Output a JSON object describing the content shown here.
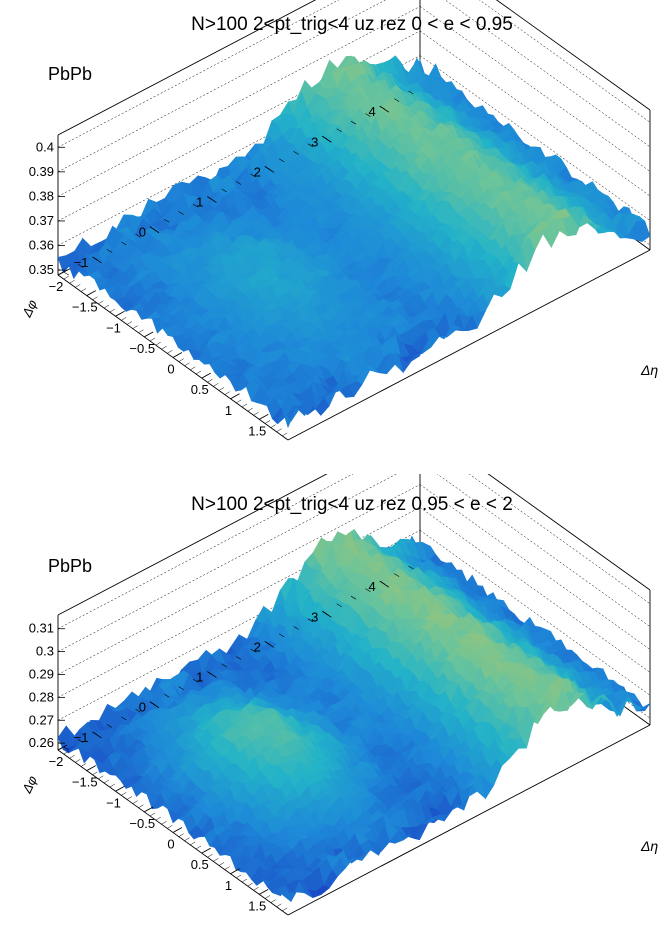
{
  "chart_data": [
    {
      "type": "surface3d",
      "title": "N>100 2<pt_trig<4 uz rez 0 < e < 0.95",
      "label": "PbPb",
      "x_axis_label": "Δη",
      "y_axis_label": "Δφ",
      "x_ticks": [
        "−2",
        "−1.5",
        "−1",
        "−0.5",
        "0",
        "0.5",
        "1",
        "1.5"
      ],
      "y_ticks": [
        "−1",
        "0",
        "1",
        "2",
        "3",
        "4"
      ],
      "z_ticks": [
        "0.35",
        "0.36",
        "0.37",
        "0.38",
        "0.39",
        "0.4"
      ],
      "x_range": [
        -2,
        2
      ],
      "y_range": [
        -1.6,
        4.7
      ],
      "z_range": [
        0.348,
        0.405
      ],
      "surface_model": {
        "baseline": 0.355,
        "near_side_peak": {
          "dphi_center": 0,
          "amplitude": 0.008
        },
        "away_side_ridge": {
          "dphi_center": 3.14,
          "amplitude": 0.02
        }
      },
      "color_scale": [
        "#1a3bc2",
        "#1e8ad8",
        "#23b3c8",
        "#6cc49a",
        "#c4c45a",
        "#f0c040",
        "#f6e03a"
      ]
    },
    {
      "type": "surface3d",
      "title": "N>100 2<pt_trig<4 uz rez 0.95 < e < 2",
      "label": "PbPb",
      "x_axis_label": "Δη",
      "y_axis_label": "Δφ",
      "x_ticks": [
        "−2",
        "−1.5",
        "−1",
        "−0.5",
        "0",
        "0.5",
        "1",
        "1.5"
      ],
      "y_ticks": [
        "−1",
        "0",
        "1",
        "2",
        "3",
        "4"
      ],
      "z_ticks": [
        "0.26",
        "0.27",
        "0.28",
        "0.29",
        "0.3",
        "0.31"
      ],
      "x_range": [
        -2,
        2
      ],
      "y_range": [
        -1.6,
        4.7
      ],
      "z_range": [
        0.257,
        0.316
      ],
      "surface_model": {
        "baseline": 0.262,
        "near_side_peak": {
          "dphi_center": 0,
          "amplitude": 0.02
        },
        "away_side_ridge": {
          "dphi_center": 3.14,
          "amplitude": 0.025
        }
      },
      "color_scale": [
        "#1a3bc2",
        "#1e8ad8",
        "#23b3c8",
        "#6cc49a",
        "#c4c45a",
        "#f0c040",
        "#f6e03a"
      ]
    }
  ]
}
